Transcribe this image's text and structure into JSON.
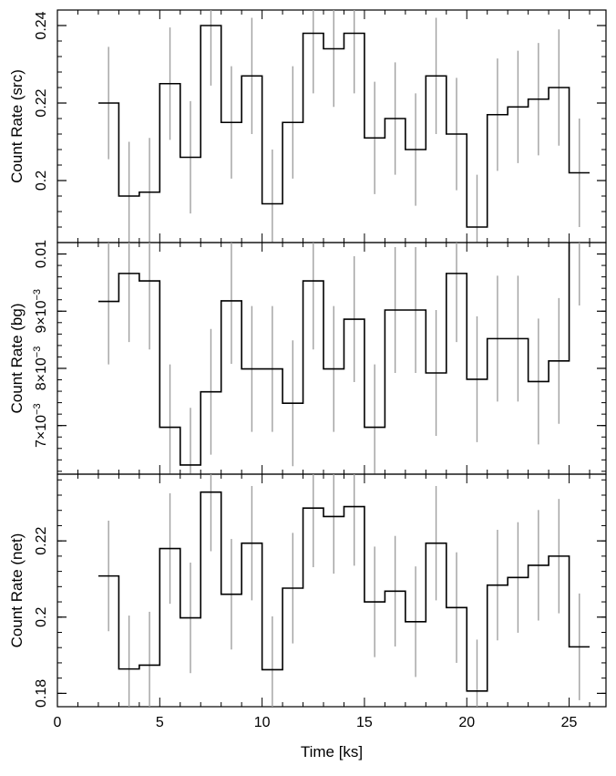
{
  "colors": {
    "line": "#000000",
    "error": "#a0a0a0",
    "background": "#ffffff"
  },
  "chart_data": {
    "type": "line",
    "style": "step-histogram with vertical error bars",
    "shared_x_axis": true,
    "xlabel": "Time [ks]",
    "xlim": [
      0,
      26.8
    ],
    "xticks": [
      0,
      5,
      10,
      15,
      20,
      25
    ],
    "bin_width": 1.0,
    "bin_centers": [
      2.5,
      3.5,
      4.5,
      5.5,
      6.5,
      7.5,
      8.5,
      9.5,
      10.5,
      11.5,
      12.5,
      13.5,
      14.5,
      15.5,
      16.5,
      17.5,
      18.5,
      19.5,
      20.5,
      21.5,
      22.5,
      23.5,
      24.5,
      25.5
    ],
    "panels": [
      {
        "ylabel": "Count Rate (src)",
        "ylim": [
          0.184,
          0.244
        ],
        "yticks": [
          0.2,
          0.22,
          0.24
        ],
        "ytick_labels": [
          "0.2",
          "0.22",
          "0.24"
        ],
        "values": [
          0.22,
          0.196,
          0.197,
          0.225,
          0.206,
          0.24,
          0.215,
          0.227,
          0.194,
          0.215,
          0.238,
          0.234,
          0.238,
          0.211,
          0.216,
          0.208,
          0.227,
          0.212,
          0.188,
          0.217,
          0.219,
          0.221,
          0.224,
          0.202
        ],
        "errors": [
          0.0145,
          0.014,
          0.014,
          0.0145,
          0.0145,
          0.0155,
          0.0145,
          0.015,
          0.014,
          0.0145,
          0.0155,
          0.015,
          0.0155,
          0.0145,
          0.0145,
          0.0145,
          0.015,
          0.0145,
          0.0135,
          0.0145,
          0.0145,
          0.0145,
          0.015,
          0.014
        ]
      },
      {
        "ylabel": "Count Rate (bg)",
        "ylim": [
          0.00615,
          0.0102
        ],
        "yticks": [
          0.007,
          0.008,
          0.009,
          0.01
        ],
        "ytick_labels": [
          "7×10⁻³",
          "8×10⁻³",
          "9×10⁻³",
          "0.01"
        ],
        "values": [
          0.00917,
          0.00966,
          0.00953,
          0.00697,
          0.00631,
          0.00759,
          0.00918,
          0.00799,
          0.00799,
          0.00739,
          0.00953,
          0.00799,
          0.00886,
          0.00697,
          0.00902,
          0.00902,
          0.00792,
          0.00966,
          0.00781,
          0.00852,
          0.00852,
          0.00777,
          0.00813,
          0.0103
        ],
        "errors": [
          0.0011,
          0.0012,
          0.0012,
          0.0011,
          0.001,
          0.0011,
          0.0011,
          0.0011,
          0.0011,
          0.0011,
          0.0012,
          0.0011,
          0.0011,
          0.0011,
          0.0011,
          0.0011,
          0.0011,
          0.0012,
          0.0011,
          0.0011,
          0.0011,
          0.0011,
          0.0011,
          0.0012
        ]
      },
      {
        "ylabel": "Count Rate (net)",
        "ylim": [
          0.1765,
          0.2375
        ],
        "yticks": [
          0.18,
          0.2,
          0.22
        ],
        "ytick_labels": [
          "0.18",
          "0.2",
          "0.22"
        ],
        "values": [
          0.2108,
          0.1864,
          0.1874,
          0.218,
          0.1998,
          0.2328,
          0.206,
          0.2194,
          0.1862,
          0.2076,
          0.2286,
          0.2264,
          0.229,
          0.204,
          0.2068,
          0.1988,
          0.2194,
          0.2025,
          0.1806,
          0.2084,
          0.2104,
          0.2136,
          0.216,
          0.1922
        ],
        "errors": [
          0.0145,
          0.014,
          0.014,
          0.0145,
          0.0145,
          0.0155,
          0.0145,
          0.015,
          0.014,
          0.0145,
          0.0155,
          0.015,
          0.0155,
          0.0145,
          0.0145,
          0.0145,
          0.015,
          0.0145,
          0.0135,
          0.0145,
          0.0145,
          0.0145,
          0.015,
          0.014
        ]
      }
    ]
  }
}
